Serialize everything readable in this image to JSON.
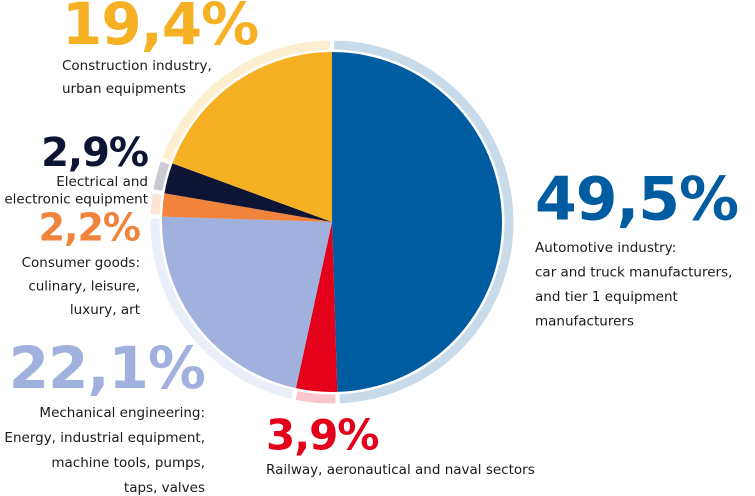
{
  "chart_data": {
    "type": "pie",
    "categories": [
      [
        "Automotive industry:",
        "car and truck manufacturers,",
        "and tier 1 equipment",
        "manufacturers"
      ],
      [
        "Railway, aeronautical and naval sectors"
      ],
      [
        "Mechanical engineering:",
        "Energy, industrial equipment,",
        "machine tools, pumps,",
        "taps, valves"
      ],
      [
        "Consumer goods:",
        "culinary, leisure,",
        "luxury, art"
      ],
      [
        "Electrical and",
        "electronic equipment"
      ],
      [
        "Construction industry,",
        "urban equipments"
      ]
    ],
    "values": [
      49.5,
      3.9,
      22.1,
      2.2,
      2.9,
      19.4
    ],
    "value_labels": [
      "49,5%",
      "3,9%",
      "22,1%",
      "2,2%",
      "2,9%",
      "19,4%"
    ],
    "colors": [
      "#005ca1",
      "#e2001a",
      "#a1b1dd",
      "#f0843c",
      "#0e1433",
      "#f5b024"
    ]
  }
}
